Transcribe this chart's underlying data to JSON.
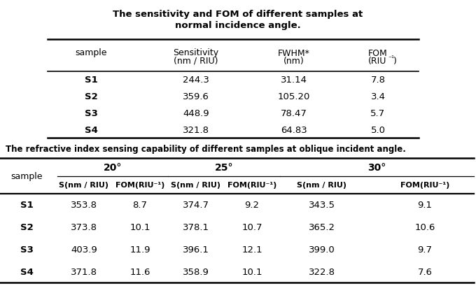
{
  "title1_line1": "The sensitivity and FOM of different samples at",
  "title1_line2": "normal incidence angle.",
  "table1_col_headers": [
    "sample",
    "Sensitivity\n(nm / RIU)",
    "FWHM*\n(nm)",
    "FOM\n(RIU⁻¹)"
  ],
  "table1_rows": [
    [
      "S1",
      "244.3",
      "31.14",
      "7.8"
    ],
    [
      "S2",
      "359.6",
      "105.20",
      "3.4"
    ],
    [
      "S3",
      "448.9",
      "78.47",
      "5.7"
    ],
    [
      "S4",
      "321.8",
      "64.83",
      "5.0"
    ]
  ],
  "title2": "The refractive index sensing capability of different samples at oblique incident angle.",
  "table2_angle_headers": [
    "20°",
    "25°",
    "30°"
  ],
  "table2_sub_headers": [
    "S(nm / RIU)",
    "FOM(RIU⁻¹)",
    "S(nm / RIU)",
    "FOM(RIU⁻¹)",
    "S(nm / RIU)",
    "FOM(RIU⁻¹)"
  ],
  "table2_rows": [
    [
      "S1",
      "353.8",
      "8.7",
      "374.7",
      "9.2",
      "343.5",
      "9.1"
    ],
    [
      "S2",
      "373.8",
      "10.1",
      "378.1",
      "10.7",
      "365.2",
      "10.6"
    ],
    [
      "S3",
      "403.9",
      "11.9",
      "396.1",
      "12.1",
      "399.0",
      "9.7"
    ],
    [
      "S4",
      "371.8",
      "11.6",
      "358.9",
      "10.1",
      "322.8",
      "7.6"
    ]
  ],
  "bg_color": "#ffffff",
  "text_color": "#000000"
}
